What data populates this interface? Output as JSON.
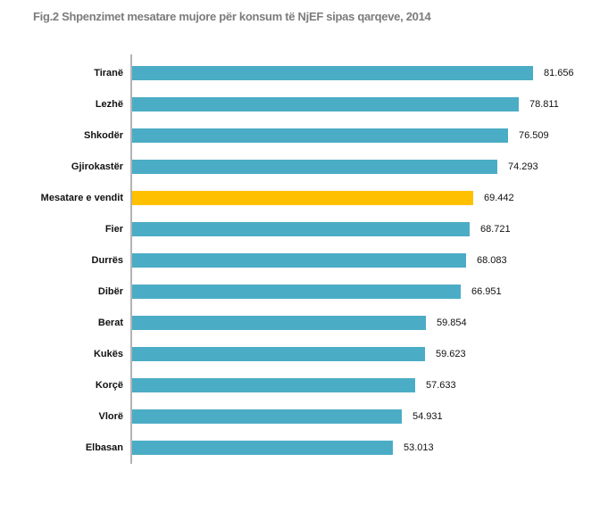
{
  "title": "Fig.2 Shpenzimet mesatare mujore për konsum të NjEF sipas qarqeve, 2014",
  "chart_data": {
    "type": "bar",
    "orientation": "horizontal",
    "title": "Fig.2 Shpenzimet mesatare mujore për konsum të NjEF sipas qarqeve, 2014",
    "xlabel": "",
    "ylabel": "",
    "xlim": [
      0,
      85
    ],
    "grid": false,
    "legend": false,
    "categories": [
      "Tiranë",
      "Lezhë",
      "Shkodër",
      "Gjirokastër",
      "Mesatare e vendit",
      "Fier",
      "Durrës",
      "Dibër",
      "Berat",
      "Kukës",
      "Korçë",
      "Vlorë",
      "Elbasan"
    ],
    "values": [
      81.656,
      78.811,
      76.509,
      74.293,
      69.442,
      68.721,
      68.083,
      66.951,
      59.854,
      59.623,
      57.633,
      54.931,
      53.013
    ],
    "value_labels": [
      "81.656",
      "78.811",
      "76.509",
      "74.293",
      "69.442",
      "68.721",
      "68.083",
      "66.951",
      "59.854",
      "59.623",
      "57.633",
      "54.931",
      "53.013"
    ],
    "highlight_index": 4,
    "highlight_category": "Mesatare e vendit",
    "colors": {
      "bar": "#4bacc6",
      "highlight": "#ffc000",
      "axis": "#b3b3b3",
      "title_text": "#7c7c7c",
      "label_text": "#111111"
    }
  }
}
